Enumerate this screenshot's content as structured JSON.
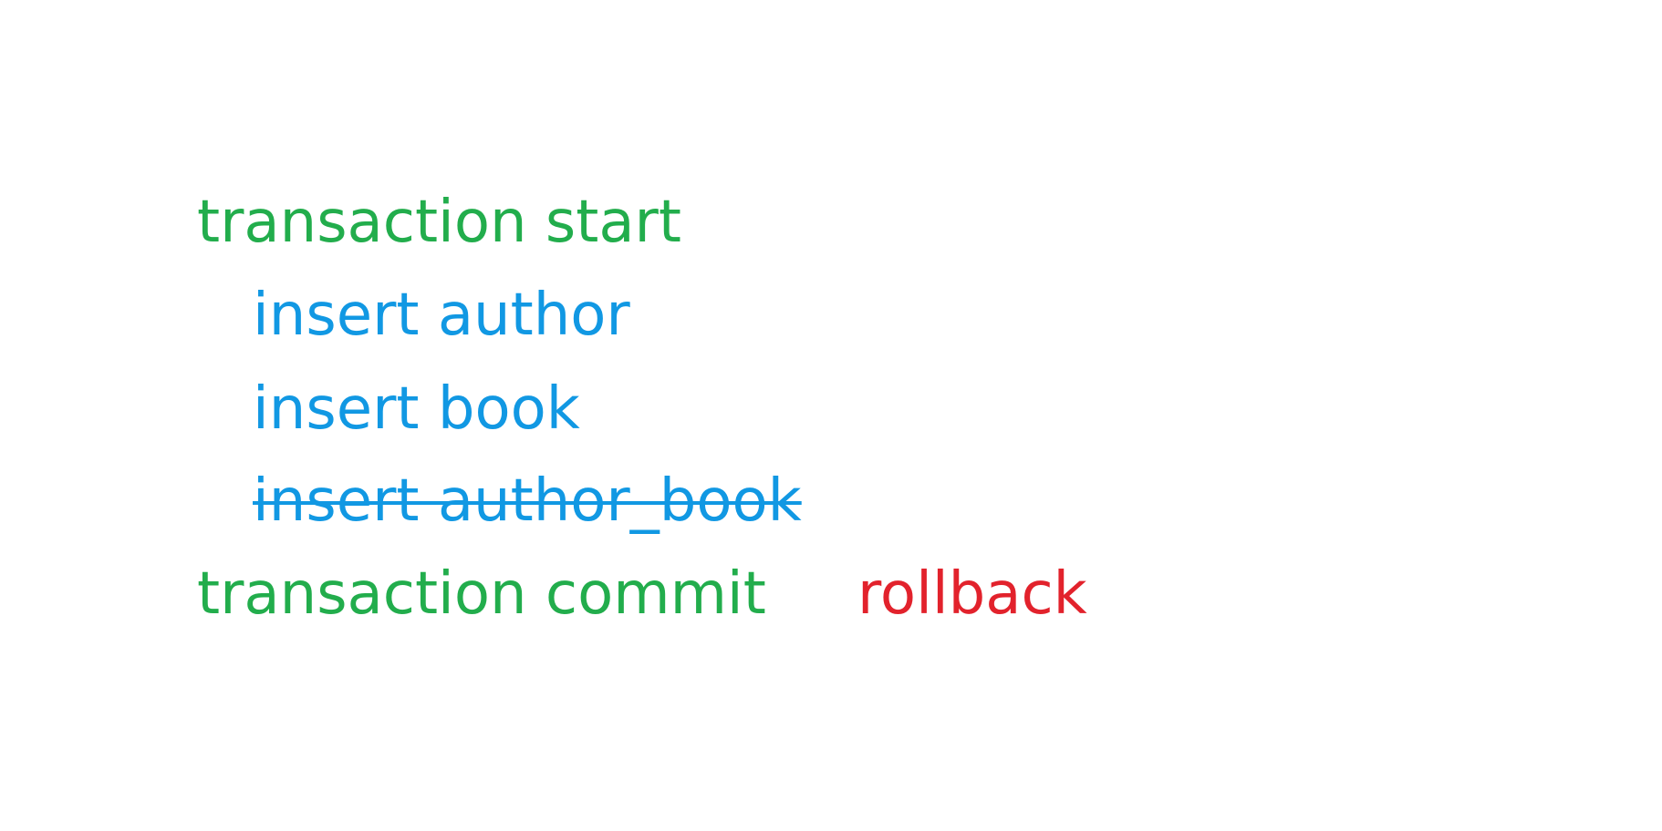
{
  "lines": {
    "transaction_start": "transaction start",
    "insert_author": "insert author",
    "insert_book": "insert book",
    "insert_author_book": "insert author_book",
    "transaction_commit": "transaction commit",
    "rollback": "rollback"
  },
  "colors": {
    "transaction": "#22ad4c",
    "operation": "#1198e3",
    "rollback": "#e2222c"
  }
}
